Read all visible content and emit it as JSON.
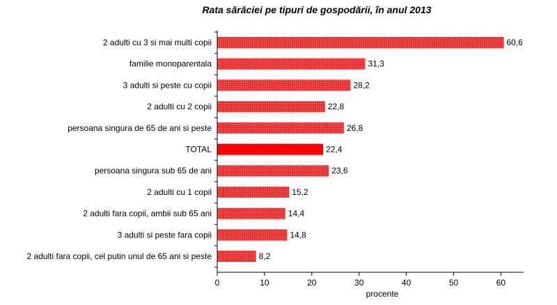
{
  "chart_data": {
    "type": "bar",
    "orientation": "horizontal",
    "title": "Rata sărăciei pe tipuri de gospodării, în anul 2013",
    "xlabel": "procente",
    "ylabel": "",
    "xlim": [
      0,
      65
    ],
    "xticks": [
      0,
      10,
      20,
      30,
      40,
      50,
      60
    ],
    "grid": false,
    "categories": [
      "2 adulti cu 3 si mai multi copii",
      "familie monoparentala",
      "3 adulti si peste  cu copii",
      "2 adulti cu 2 copii",
      "persoana singura de 65 de ani si peste",
      "TOTAL",
      "persoana singura sub 65 de ani",
      "2 adulti cu 1 copil",
      "2 adulti fara copii, ambii sub 65 ani",
      "3 adulti si peste fara copii",
      "2 adulti fara copii, cel putin unul de 65 ani si peste"
    ],
    "values": [
      60.6,
      31.3,
      28.2,
      22.8,
      26.8,
      22.4,
      23.6,
      15.2,
      14.4,
      14.8,
      8.2
    ],
    "value_labels": [
      "60,6",
      "31,3",
      "28,2",
      "22,8",
      "26,8",
      "22,4",
      "23,6",
      "15,2",
      "14,4",
      "14,8",
      "8,2"
    ],
    "highlight_category": "TOTAL",
    "colors": {
      "bar": "#ff2a2a",
      "bar_dots": "#ffffff",
      "highlight": "#ff0000",
      "axis": "#000000"
    }
  }
}
